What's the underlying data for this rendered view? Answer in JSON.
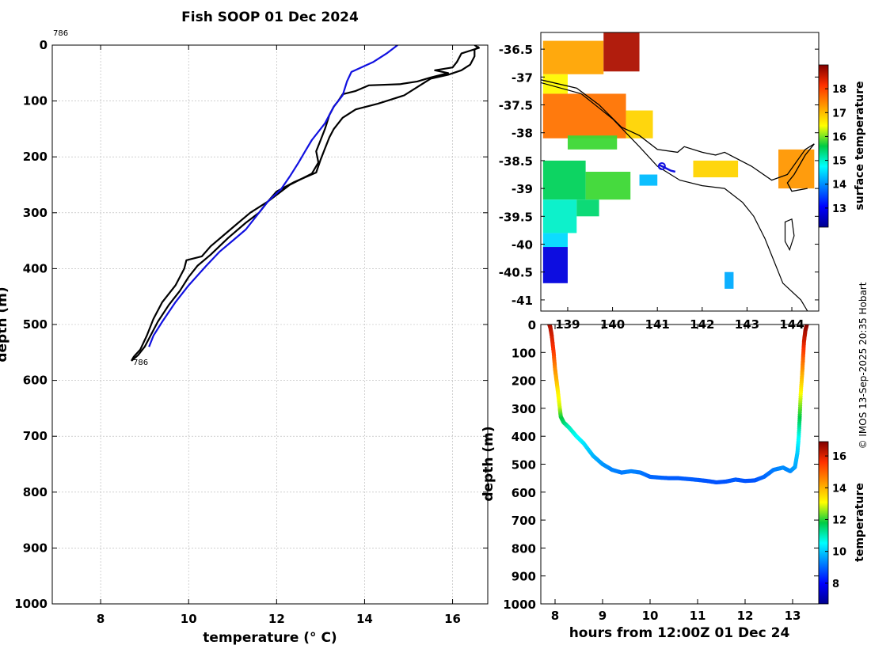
{
  "figure": {
    "title": "Fish SOOP 01 Dec 2024",
    "credit": "© IMOS 13-Sep-2025 20:35 Hobart"
  },
  "colors": {
    "profile_line": "#000000",
    "reference_line": "#1010e0",
    "grid": "#b4b4b4",
    "coast": "#000000",
    "track": "#1010e0"
  },
  "chart_data": [
    {
      "id": "profile",
      "type": "line",
      "title": "Fish SOOP 01 Dec 2024",
      "xlabel": "temperature (° C)",
      "ylabel": "depth (m)",
      "xlim": [
        6.9,
        16.8
      ],
      "ylim": [
        0,
        1000
      ],
      "x_ticks": [
        8,
        10,
        12,
        14,
        16
      ],
      "y_ticks": [
        0,
        100,
        200,
        300,
        400,
        500,
        600,
        700,
        800,
        900,
        1000
      ],
      "grid": true,
      "labels": [
        "786",
        "786"
      ],
      "series": [
        {
          "name": "fish profile",
          "color": "#000000",
          "points": [
            [
              16.5,
              0
            ],
            [
              16.6,
              5
            ],
            [
              16.2,
              15
            ],
            [
              16.1,
              30
            ],
            [
              16.0,
              40
            ],
            [
              15.6,
              45
            ],
            [
              15.9,
              50
            ],
            [
              15.5,
              58
            ],
            [
              15.2,
              65
            ],
            [
              14.8,
              70
            ],
            [
              14.1,
              72
            ],
            [
              13.8,
              82
            ],
            [
              13.5,
              88
            ],
            [
              13.4,
              100
            ],
            [
              13.3,
              110
            ],
            [
              13.2,
              125
            ],
            [
              13.1,
              150
            ],
            [
              13.0,
              170
            ],
            [
              12.9,
              190
            ],
            [
              12.95,
              210
            ],
            [
              12.8,
              230
            ],
            [
              12.3,
              250
            ],
            [
              12.1,
              262
            ],
            [
              11.8,
              280
            ],
            [
              11.4,
              300
            ],
            [
              11.1,
              320
            ],
            [
              10.8,
              340
            ],
            [
              10.5,
              360
            ],
            [
              10.3,
              378
            ],
            [
              9.95,
              385
            ],
            [
              9.9,
              400
            ],
            [
              9.7,
              430
            ],
            [
              9.4,
              460
            ],
            [
              9.2,
              490
            ],
            [
              9.05,
              520
            ],
            [
              8.9,
              545
            ],
            [
              8.75,
              558
            ],
            [
              8.7,
              565
            ]
          ]
        },
        {
          "name": "fish profile (descent)",
          "color": "#000000",
          "points": [
            [
              8.7,
              565
            ],
            [
              8.85,
              555
            ],
            [
              9.0,
              540
            ],
            [
              9.1,
              525
            ],
            [
              9.3,
              495
            ],
            [
              9.55,
              465
            ],
            [
              9.8,
              440
            ],
            [
              10.0,
              415
            ],
            [
              10.2,
              395
            ],
            [
              10.5,
              375
            ],
            [
              10.9,
              345
            ],
            [
              11.3,
              318
            ],
            [
              11.6,
              300
            ],
            [
              11.8,
              280
            ],
            [
              12.0,
              262
            ],
            [
              12.4,
              245
            ],
            [
              12.9,
              228
            ],
            [
              13.0,
              205
            ],
            [
              13.1,
              185
            ],
            [
              13.2,
              165
            ],
            [
              13.3,
              150
            ],
            [
              13.5,
              130
            ],
            [
              13.8,
              115
            ],
            [
              14.3,
              105
            ],
            [
              14.9,
              90
            ],
            [
              15.3,
              70
            ],
            [
              15.5,
              60
            ],
            [
              15.9,
              53
            ],
            [
              16.2,
              45
            ],
            [
              16.4,
              35
            ],
            [
              16.5,
              20
            ],
            [
              16.5,
              8
            ],
            [
              16.6,
              3
            ]
          ]
        },
        {
          "name": "reference profile",
          "color": "#1010e0",
          "points": [
            [
              14.75,
              0
            ],
            [
              14.5,
              15
            ],
            [
              14.2,
              30
            ],
            [
              13.7,
              48
            ],
            [
              13.6,
              65
            ],
            [
              13.5,
              90
            ],
            [
              13.3,
              110
            ],
            [
              13.1,
              140
            ],
            [
              12.8,
              170
            ],
            [
              12.65,
              190
            ],
            [
              12.5,
              210
            ],
            [
              12.3,
              235
            ],
            [
              12.1,
              258
            ],
            [
              11.8,
              280
            ],
            [
              11.6,
              300
            ],
            [
              11.3,
              330
            ],
            [
              11.0,
              350
            ],
            [
              10.7,
              370
            ],
            [
              10.4,
              395
            ],
            [
              10.0,
              430
            ],
            [
              9.7,
              460
            ],
            [
              9.4,
              495
            ],
            [
              9.2,
              520
            ],
            [
              9.1,
              540
            ]
          ]
        }
      ]
    },
    {
      "id": "map",
      "type": "heatmap",
      "title": "",
      "xlabel": "",
      "ylabel": "",
      "xlim": [
        138.4,
        144.6
      ],
      "ylim": [
        -41.2,
        -36.2
      ],
      "x_ticks": [
        139,
        140,
        141,
        142,
        143,
        144
      ],
      "y_ticks": [
        -36.5,
        -37,
        -37.5,
        -38,
        -38.5,
        -39,
        -39.5,
        -40,
        -40.5,
        -41
      ],
      "y_tick_labels": [
        "-36.5",
        "-37",
        "-37.5",
        "-38",
        "-38.5",
        "-39",
        "-39.5",
        "-40",
        "-40.5",
        "-41"
      ],
      "colorbar_label": "surface temperature",
      "colorbar_range": [
        12.2,
        19.0
      ],
      "colorbar_ticks": [
        13,
        14,
        15,
        16,
        17,
        18
      ],
      "sst_patches": [
        {
          "lon": [
            138.45,
            139.8
          ],
          "lat": [
            -36.35,
            -36.95
          ],
          "value": 17.2
        },
        {
          "lon": [
            139.8,
            140.6
          ],
          "lat": [
            -36.2,
            -36.9
          ],
          "value": 18.7
        },
        {
          "lon": [
            138.45,
            139.0
          ],
          "lat": [
            -36.95,
            -37.3
          ],
          "value": 16.5
        },
        {
          "lon": [
            138.45,
            140.3
          ],
          "lat": [
            -37.3,
            -38.1
          ],
          "value": 17.6
        },
        {
          "lon": [
            140.3,
            140.9
          ],
          "lat": [
            -37.6,
            -38.1
          ],
          "value": 16.8
        },
        {
          "lon": [
            139.0,
            140.1
          ],
          "lat": [
            -38.05,
            -38.3
          ],
          "value": 15.8
        },
        {
          "lon": [
            138.45,
            139.4
          ],
          "lat": [
            -38.5,
            -39.2
          ],
          "value": 15.5
        },
        {
          "lon": [
            139.4,
            140.4
          ],
          "lat": [
            -38.7,
            -39.2
          ],
          "value": 15.8
        },
        {
          "lon": [
            138.45,
            139.2
          ],
          "lat": [
            -39.2,
            -39.8
          ],
          "value": 15.0
        },
        {
          "lon": [
            139.2,
            139.7
          ],
          "lat": [
            -39.2,
            -39.5
          ],
          "value": 15.4
        },
        {
          "lon": [
            138.45,
            139.0
          ],
          "lat": [
            -39.8,
            -40.05
          ],
          "value": 14.5
        },
        {
          "lon": [
            138.45,
            139.0
          ],
          "lat": [
            -40.05,
            -40.7
          ],
          "value": 12.8
        },
        {
          "lon": [
            140.6,
            141.0
          ],
          "lat": [
            -38.75,
            -38.95
          ],
          "value": 14.3
        },
        {
          "lon": [
            141.8,
            142.8
          ],
          "lat": [
            -38.5,
            -38.8
          ],
          "value": 16.8
        },
        {
          "lon": [
            143.7,
            144.5
          ],
          "lat": [
            -38.3,
            -39.0
          ],
          "value": 17.3
        },
        {
          "lon": [
            142.5,
            142.7
          ],
          "lat": [
            -40.5,
            -40.8
          ],
          "value": 14.2
        }
      ],
      "coast": [
        [
          138.4,
          -37.05
        ],
        [
          139.2,
          -37.2
        ],
        [
          139.7,
          -37.5
        ],
        [
          140.2,
          -37.9
        ],
        [
          140.6,
          -38.05
        ],
        [
          141.0,
          -38.3
        ],
        [
          141.45,
          -38.35
        ],
        [
          141.6,
          -38.25
        ],
        [
          142.0,
          -38.35
        ],
        [
          142.3,
          -38.4
        ],
        [
          142.5,
          -38.35
        ],
        [
          143.1,
          -38.6
        ],
        [
          143.55,
          -38.85
        ],
        [
          143.9,
          -38.75
        ],
        [
          144.3,
          -38.3
        ],
        [
          144.5,
          -38.2
        ]
      ],
      "tas_coast": [
        [
          144.5,
          -38.2
        ],
        [
          144.3,
          -38.4
        ],
        [
          144.05,
          -38.75
        ],
        [
          143.9,
          -38.9
        ],
        [
          144.0,
          -39.05
        ],
        [
          144.35,
          -39.0
        ]
      ],
      "shelf": [
        [
          138.4,
          -37.1
        ],
        [
          139.3,
          -37.3
        ],
        [
          140.0,
          -37.75
        ],
        [
          140.6,
          -38.25
        ],
        [
          141.0,
          -38.6
        ],
        [
          141.5,
          -38.85
        ],
        [
          142.0,
          -38.95
        ],
        [
          142.5,
          -39.0
        ],
        [
          142.9,
          -39.25
        ],
        [
          143.15,
          -39.5
        ],
        [
          143.4,
          -39.9
        ],
        [
          143.6,
          -40.3
        ],
        [
          143.8,
          -40.7
        ],
        [
          144.2,
          -41.0
        ],
        [
          144.35,
          -41.2
        ]
      ],
      "island": [
        [
          143.85,
          -39.6
        ],
        [
          144.0,
          -39.55
        ],
        [
          144.05,
          -39.85
        ],
        [
          143.95,
          -40.1
        ],
        [
          143.85,
          -39.95
        ]
      ],
      "track": [
        [
          141.05,
          -38.58
        ],
        [
          141.15,
          -38.62
        ],
        [
          141.3,
          -38.68
        ],
        [
          141.4,
          -38.7
        ]
      ],
      "track_start": [
        141.1,
        -38.6
      ]
    },
    {
      "id": "timeseries",
      "type": "scatter",
      "title": "",
      "xlabel": "hours from 12:00Z 01 Dec 24",
      "ylabel": "depth (m)",
      "xlim": [
        7.7,
        13.55
      ],
      "ylim": [
        0,
        1000
      ],
      "x_ticks": [
        8,
        9,
        10,
        11,
        12,
        13
      ],
      "y_ticks": [
        0,
        100,
        200,
        300,
        400,
        500,
        600,
        700,
        800,
        900,
        1000
      ],
      "colorbar_label": "temperature",
      "colorbar_range": [
        6.7,
        16.9
      ],
      "colorbar_ticks": [
        8,
        10,
        12,
        14,
        16
      ],
      "points": [
        [
          7.88,
          0,
          16.6
        ],
        [
          7.9,
          10,
          16.4
        ],
        [
          7.93,
          40,
          16.1
        ],
        [
          7.97,
          100,
          15.5
        ],
        [
          8.0,
          160,
          14.5
        ],
        [
          8.03,
          200,
          14.0
        ],
        [
          8.06,
          240,
          13.3
        ],
        [
          8.1,
          300,
          12.8
        ],
        [
          8.12,
          330,
          12.0
        ],
        [
          8.18,
          350,
          11.6
        ],
        [
          8.3,
          370,
          11.0
        ],
        [
          8.45,
          400,
          10.6
        ],
        [
          8.6,
          425,
          10.3
        ],
        [
          8.8,
          470,
          9.8
        ],
        [
          9.0,
          500,
          9.5
        ],
        [
          9.2,
          520,
          9.3
        ],
        [
          9.4,
          530,
          9.2
        ],
        [
          9.6,
          525,
          9.3
        ],
        [
          9.8,
          530,
          9.2
        ],
        [
          10.0,
          545,
          9.0
        ],
        [
          10.2,
          548,
          9.0
        ],
        [
          10.4,
          550,
          8.9
        ],
        [
          10.6,
          550,
          8.9
        ],
        [
          10.8,
          553,
          8.9
        ],
        [
          11.0,
          556,
          8.9
        ],
        [
          11.2,
          560,
          8.8
        ],
        [
          11.4,
          565,
          8.8
        ],
        [
          11.6,
          562,
          8.8
        ],
        [
          11.8,
          555,
          8.9
        ],
        [
          12.0,
          560,
          8.8
        ],
        [
          12.2,
          558,
          8.8
        ],
        [
          12.4,
          545,
          9.0
        ],
        [
          12.6,
          520,
          9.2
        ],
        [
          12.8,
          512,
          9.4
        ],
        [
          12.95,
          525,
          9.3
        ],
        [
          13.05,
          510,
          9.6
        ],
        [
          13.1,
          460,
          10.0
        ],
        [
          13.13,
          400,
          10.6
        ],
        [
          13.15,
          330,
          11.8
        ],
        [
          13.17,
          250,
          13.0
        ],
        [
          13.2,
          180,
          14.0
        ],
        [
          13.22,
          120,
          15.0
        ],
        [
          13.24,
          60,
          16.0
        ],
        [
          13.27,
          20,
          16.5
        ],
        [
          13.3,
          0,
          16.8
        ]
      ]
    }
  ]
}
